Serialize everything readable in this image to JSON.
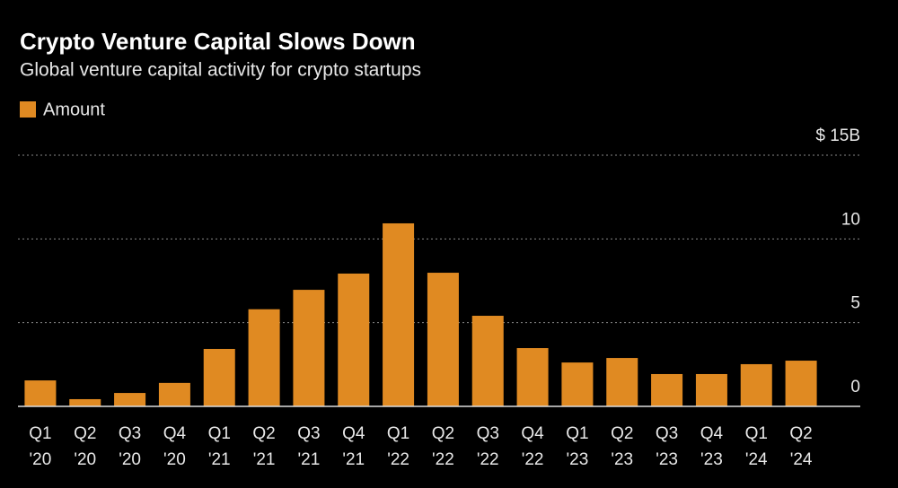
{
  "chart_data": {
    "type": "bar",
    "title": "Crypto Venture Capital Slows Down",
    "subtitle": "Global venture capital activity for crypto startups",
    "categories": [
      [
        "Q1",
        "'20"
      ],
      [
        "Q2",
        "'20"
      ],
      [
        "Q3",
        "'20"
      ],
      [
        "Q4",
        "'20"
      ],
      [
        "Q1",
        "'21"
      ],
      [
        "Q2",
        "'21"
      ],
      [
        "Q3",
        "'21"
      ],
      [
        "Q4",
        "'21"
      ],
      [
        "Q1",
        "'22"
      ],
      [
        "Q2",
        "'22"
      ],
      [
        "Q3",
        "'22"
      ],
      [
        "Q4",
        "'22"
      ],
      [
        "Q1",
        "'23"
      ],
      [
        "Q2",
        "'23"
      ],
      [
        "Q3",
        "'23"
      ],
      [
        "Q4",
        "'23"
      ],
      [
        "Q1",
        "'24"
      ],
      [
        "Q2",
        "'24"
      ]
    ],
    "series": [
      {
        "name": "Amount",
        "color": "#e08a22",
        "values": [
          1.55,
          0.43,
          0.8,
          1.4,
          3.43,
          5.8,
          6.96,
          7.93,
          10.93,
          7.98,
          5.41,
          3.48,
          2.62,
          2.89,
          1.93,
          1.93,
          2.52,
          2.73
        ]
      }
    ],
    "ylim": [
      0,
      15
    ],
    "yticks": [
      0,
      5,
      10,
      {
        "value": 15,
        "label": "$ 15B"
      }
    ],
    "grid": true
  }
}
